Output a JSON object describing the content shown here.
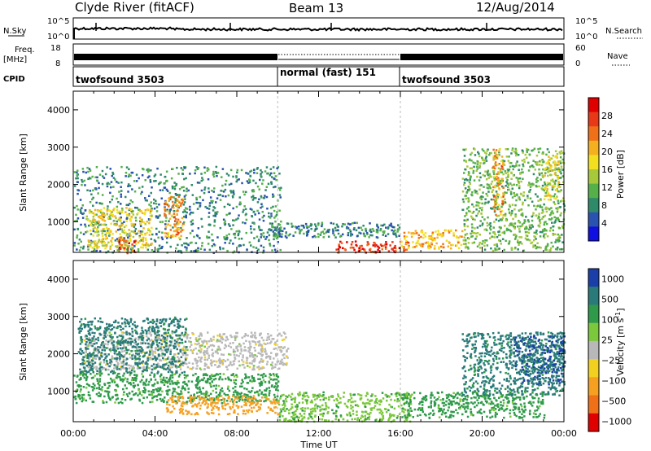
{
  "header": {
    "station": "Clyde River (fitACF)",
    "beam": "Beam 13",
    "date": "12/Aug/2014"
  },
  "strips": {
    "nsky": {
      "label": "N.Sky",
      "right_label": "N.Search",
      "left_ticks": [
        "10^5",
        "10^0"
      ],
      "right_ticks": [
        "10^5",
        "10^0"
      ]
    },
    "freq": {
      "label_top": "Freq.",
      "label_bottom": "[MHz]",
      "right_label": "Nave",
      "left_ticks": [
        "18",
        "8"
      ],
      "right_ticks": [
        "60",
        "0"
      ]
    },
    "cpid": {
      "label": "CPID",
      "modes": [
        {
          "name": "twofsound 3503",
          "start_hour": 0,
          "end_hour": 10
        },
        {
          "name": "normal (fast) 151",
          "start_hour": 10,
          "end_hour": 16
        },
        {
          "name": "twofsound 3503",
          "start_hour": 16,
          "end_hour": 24
        }
      ]
    }
  },
  "chart_data": [
    {
      "type": "heatmap",
      "name": "power",
      "ylabel": "Slant Range [km]",
      "xlabel": "Time UT",
      "x_range_hours": [
        0,
        24
      ],
      "ylim": [
        180,
        4500
      ],
      "y_ticks": [
        1000,
        2000,
        3000,
        4000
      ],
      "x_tick_labels": [
        "00:00",
        "04:00",
        "08:00",
        "12:00",
        "16:00",
        "20:00",
        "00:00"
      ],
      "colorbar": {
        "label": "Power [dB]",
        "ticks": [
          "4",
          "8",
          "12",
          "16",
          "20",
          "24",
          "28"
        ],
        "colors": [
          "#1010e0",
          "#2a52b0",
          "#2f8a6a",
          "#56b04a",
          "#a8c83c",
          "#f2e020",
          "#f5b020",
          "#f07018",
          "#e83818",
          "#e00000"
        ]
      },
      "regions": [
        {
          "t0": 0.0,
          "t1": 10.2,
          "r0": 190,
          "r1": 2500,
          "value": 8
        },
        {
          "t0": 0.6,
          "t1": 3.8,
          "r0": 300,
          "r1": 1400,
          "value": 18
        },
        {
          "t0": 2.2,
          "t1": 3.0,
          "r0": 180,
          "r1": 600,
          "value": 26
        },
        {
          "t0": 4.4,
          "t1": 5.4,
          "r0": 600,
          "r1": 1700,
          "value": 22
        },
        {
          "t0": 9.5,
          "t1": 16.0,
          "r0": 600,
          "r1": 1000,
          "value": 8
        },
        {
          "t0": 12.8,
          "t1": 16.5,
          "r0": 200,
          "r1": 500,
          "value": 28
        },
        {
          "t0": 16.0,
          "t1": 19.0,
          "r0": 300,
          "r1": 800,
          "value": 20
        },
        {
          "t0": 19.0,
          "t1": 24.0,
          "r0": 250,
          "r1": 3000,
          "value": 12
        },
        {
          "t0": 20.5,
          "t1": 21.0,
          "r0": 1200,
          "r1": 3000,
          "value": 22
        },
        {
          "t0": 23.0,
          "t1": 23.7,
          "r0": 1600,
          "r1": 2800,
          "value": 18
        }
      ]
    },
    {
      "type": "heatmap",
      "name": "velocity",
      "ylabel": "Slant Range [km]",
      "xlabel": "Time UT",
      "x_range_hours": [
        0,
        24
      ],
      "ylim": [
        180,
        4500
      ],
      "y_ticks": [
        1000,
        2000,
        3000,
        4000
      ],
      "x_tick_labels": [
        "00:00",
        "04:00",
        "08:00",
        "12:00",
        "16:00",
        "20:00",
        "00:00"
      ],
      "colorbar": {
        "label": "Velocity [m s^-1]",
        "ticks": [
          "1000",
          "500",
          "100",
          "25",
          "−25",
          "−100",
          "−500",
          "−1000"
        ],
        "colors": [
          "#1a3fa8",
          "#2a7a7a",
          "#2e9a4a",
          "#7cc83c",
          "#b8b8b8",
          "#f2d020",
          "#f5a020",
          "#f07018",
          "#e00000"
        ]
      },
      "regions": [
        {
          "t0": 0.5,
          "t1": 10.5,
          "r0": 1600,
          "r1": 2600,
          "value": 0
        },
        {
          "t0": 0.0,
          "t1": 10.0,
          "r0": 700,
          "r1": 1500,
          "value": 150
        },
        {
          "t0": 0.2,
          "t1": 5.5,
          "r0": 1500,
          "r1": 3000,
          "value": 700
        },
        {
          "t0": 4.5,
          "t1": 10.0,
          "r0": 400,
          "r1": 900,
          "value": -300
        },
        {
          "t0": 10.0,
          "t1": 16.5,
          "r0": 200,
          "r1": 1000,
          "value": 80
        },
        {
          "t0": 16.0,
          "t1": 23.0,
          "r0": 300,
          "r1": 1000,
          "value": 150
        },
        {
          "t0": 19.0,
          "t1": 24.0,
          "r0": 900,
          "r1": 2600,
          "value": 700
        },
        {
          "t0": 21.5,
          "t1": 24.0,
          "r0": 1200,
          "r1": 2500,
          "value": 1000
        }
      ]
    }
  ]
}
